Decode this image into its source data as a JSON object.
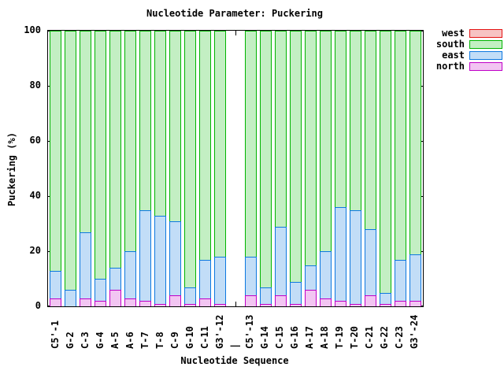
{
  "title": "Nucleotide Parameter: Puckering",
  "axes": {
    "x_label": "Nucleotide Sequence",
    "y_label": "Puckering (%)",
    "y_ticks": [
      0,
      20,
      40,
      60,
      80,
      100
    ],
    "y_range": [
      0,
      100
    ]
  },
  "legend": {
    "position": "top-right",
    "items": [
      {
        "label": "west",
        "fill": "#f7c3c3",
        "border": "#e41414"
      },
      {
        "label": "south",
        "fill": "#c3efc3",
        "border": "#00b400"
      },
      {
        "label": "east",
        "fill": "#c2ddf7",
        "border": "#0d78e0"
      },
      {
        "label": "north",
        "fill": "#f2c5f2",
        "border": "#c000c8"
      }
    ]
  },
  "chart_data": {
    "type": "bar",
    "stacked": true,
    "title": "Nucleotide Parameter: Puckering",
    "xlabel": "Nucleotide Sequence",
    "ylabel": "Puckering (%)",
    "ylim": [
      0,
      100
    ],
    "grid": false,
    "legend_position": "top-right-outside",
    "categories": [
      "C5'-1",
      "G-2",
      "C-3",
      "G-4",
      "A-5",
      "A-6",
      "T-7",
      "T-8",
      "C-9",
      "G-10",
      "C-11",
      "G3'-12",
      "|",
      "C5'-13",
      "G-14",
      "C-15",
      "G-16",
      "A-17",
      "A-18",
      "T-19",
      "T-20",
      "C-21",
      "G-22",
      "C-23",
      "G3'-24"
    ],
    "separator_index": 12,
    "stack_order_bottom_to_top": [
      "north",
      "east",
      "south",
      "west"
    ],
    "series": [
      {
        "name": "north",
        "values": [
          3,
          0,
          3,
          2,
          6,
          3,
          2,
          1,
          4,
          1,
          3,
          1,
          null,
          4,
          1,
          4,
          1,
          6,
          3,
          2,
          1,
          4,
          1,
          2,
          2
        ]
      },
      {
        "name": "east",
        "values": [
          10,
          6,
          24,
          8,
          8,
          17,
          33,
          32,
          27,
          6,
          14,
          17,
          null,
          14,
          6,
          25,
          8,
          9,
          17,
          34,
          34,
          24,
          4,
          15,
          17
        ]
      },
      {
        "name": "south",
        "values": [
          87,
          94,
          73,
          90,
          86,
          80,
          65,
          67,
          69,
          93,
          83,
          82,
          null,
          82,
          93,
          71,
          91,
          85,
          80,
          64,
          65,
          72,
          95,
          83,
          81
        ]
      },
      {
        "name": "west",
        "values": [
          0,
          0,
          0,
          0,
          0,
          0,
          0,
          0,
          0,
          0,
          0,
          0,
          null,
          0,
          0,
          0,
          0,
          0,
          0,
          0,
          0,
          0,
          0,
          0,
          0
        ]
      }
    ]
  }
}
